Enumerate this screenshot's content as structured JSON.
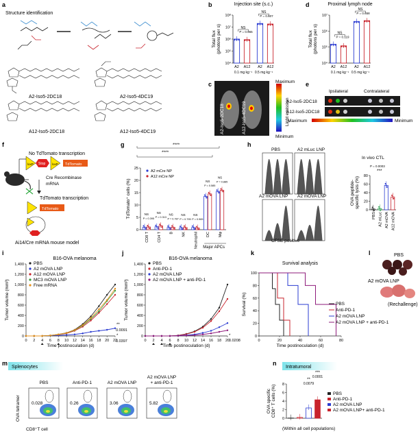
{
  "panels": {
    "a": {
      "letter": "a",
      "title": "Structure identification",
      "names": [
        "A2-Iso5-2DC18",
        "A2-Iso5-4DC19",
        "A12-Iso5-2DC18",
        "A12-Iso5-4DC19"
      ]
    },
    "b": {
      "letter": "b"
    },
    "c": {
      "letter": "c",
      "mice": [
        "A2-Iso5-2DC18",
        "A12-Iso5-4DC19"
      ],
      "max_label": "Maximum",
      "min_label": "Minimum",
      "axis_label": "Light emission"
    },
    "d": {
      "letter": "d"
    },
    "e": {
      "letter": "e",
      "col_labels": [
        "Ipsilateral",
        "Contralateral"
      ],
      "row_labels": [
        "A2-Iso5-2DC18",
        "A12-Iso5-2DC18"
      ],
      "scale_min": "Minimum",
      "scale_max": "Maximum"
    },
    "f": {
      "letter": "f",
      "text_top": "No TdTomato transcription",
      "loxp": "loxP",
      "stop": "Stop",
      "tdtomato": "TdTomato",
      "cre_label": "Cre Recombinase\nmRNA",
      "text_mid": "TdTomato transcription",
      "cre": "Cre",
      "caption": "Ai14/Cre mRNA mouse model"
    },
    "g": {
      "letter": "g",
      "stars": "****"
    },
    "h": {
      "letter": "h",
      "labels": [
        "PBS",
        "A2 mLuc LNP",
        "A2 mOVA LNP",
        "A2 mOVA LNP"
      ],
      "xaxis": "CFSE positive",
      "ctl_title": "In vivo CTL",
      "p": "P = 0.0003",
      "stars": "***",
      "ylabel": "OVA peptide-specific lysis (%)",
      "xcats": [
        "PBS",
        "A2 mLuc",
        "A2 mOVA",
        "A12 mOVA"
      ]
    },
    "i": {
      "letter": "i"
    },
    "j": {
      "letter": "j"
    },
    "k": {
      "letter": "k"
    },
    "l": {
      "letter": "l",
      "pbs": "PBS",
      "a2": "A2 mOVA LNP",
      "rechallenge": "(Rechallenge)"
    },
    "m": {
      "letter": "m",
      "banner": "Splenocytes",
      "titles": [
        "PBS",
        "Anti-PD-1",
        "A2 mOVA LNP",
        "A2 mOVA LNP\n+ anti-PD-1"
      ],
      "values": [
        "0.028",
        "0.26",
        "3.06",
        "5.82"
      ],
      "ylabel": "OVA tetramer",
      "xlabel": "CD8⁺T cell"
    },
    "n": {
      "letter": "n",
      "banner": "Intratumoral",
      "ylabel": "OVA specific CD8⁺ T cells (%)",
      "legend": [
        "PBS",
        "Anti-PD-1",
        "A2 mOVA LNP",
        "A2 mOVA LNP+ anti-PD-1"
      ],
      "annot": [
        "**",
        "0.0079",
        "***",
        "0.0001"
      ],
      "footer": "(Within all cell populations)"
    }
  },
  "chart_data": [
    {
      "id": "b",
      "type": "bar",
      "title": "Injection site (s.c.)",
      "ylabel": "Total flux (photons per s)",
      "yscale": "log",
      "ylim": [
        10000,
        100000000
      ],
      "yticks": [
        "10⁴",
        "10⁵",
        "10⁶",
        "10⁷",
        "10⁸"
      ],
      "categories": [
        "A2",
        "A12",
        "A2",
        "A12"
      ],
      "groups": [
        "0.1 mg kg⁻¹",
        "0.5 mg kg⁻¹"
      ],
      "values": [
        1000000,
        900000,
        20000000,
        18000000
      ],
      "colors": [
        "#2a3bd1",
        "#c8232c",
        "#2a3bd1",
        "#c8232c"
      ],
      "annotations": [
        {
          "text": "NS"
        },
        {
          "text": "P = 0.965"
        },
        {
          "text": "NS"
        },
        {
          "text": "P = 0.607"
        }
      ]
    },
    {
      "id": "d",
      "type": "bar",
      "title": "Proximal lymph node",
      "ylabel": "Total flux (photons per s)",
      "yscale": "log",
      "ylim": [
        10000,
        10000000
      ],
      "yticks": [
        "10⁴",
        "10⁵",
        "10⁶",
        "10⁷"
      ],
      "categories": [
        "A2",
        "A12",
        "A2",
        "A12"
      ],
      "groups": [
        "0.1 mg kg⁻¹",
        "0.5 mg kg⁻¹"
      ],
      "values": [
        150000,
        120000,
        4000000,
        4500000
      ],
      "colors": [
        "#2a3bd1",
        "#c8232c",
        "#2a3bd1",
        "#c8232c"
      ],
      "annotations": [
        {
          "text": "NS"
        },
        {
          "text": "P = 0.119"
        },
        {
          "text": "NS"
        },
        {
          "text": "P = 0.658"
        }
      ]
    },
    {
      "id": "g",
      "type": "bar",
      "ylabel": "TdTomato⁺ cells (%)",
      "ylim": [
        0,
        25
      ],
      "yticks": [
        "0",
        "5",
        "10",
        "15",
        "20",
        "25"
      ],
      "categories": [
        "CD8 T",
        "CD4 T",
        "B",
        "NK",
        "Neutrophil",
        "DC",
        "Mφ"
      ],
      "xgroup_label": "Major APCs",
      "series": [
        {
          "name": "A2 mCre NP",
          "values": [
            1.0,
            1.2,
            0.9,
            0.8,
            0.9,
            13.5,
            15.5
          ],
          "color": "#2a3bd1"
        },
        {
          "name": "A12 mCre NP",
          "values": [
            1.1,
            1.6,
            1.0,
            0.9,
            0.7,
            14.5,
            16.0
          ],
          "color": "#c8232c"
        }
      ],
      "annotations": [
        {
          "text": "NS"
        },
        {
          "text": "P = 0.395"
        },
        {
          "text": "NS"
        },
        {
          "text": "P = 0.313"
        },
        {
          "text": "NS"
        },
        {
          "text": "P = 0.787"
        },
        {
          "text": "NS"
        },
        {
          "text": "P = 0.795"
        },
        {
          "text": "NS"
        },
        {
          "text": "P = 0.965"
        },
        {
          "text": "NS"
        },
        {
          "text": "P = 0.585"
        },
        {
          "text": "NS"
        },
        {
          "text": "P = 0.885"
        }
      ]
    },
    {
      "id": "h",
      "type": "bar",
      "title": "In vivo CTL",
      "ylabel": "OVA peptide-specific lysis (%)",
      "ylim": [
        0,
        80
      ],
      "yticks": [
        "0",
        "20",
        "40",
        "60",
        "80"
      ],
      "categories": [
        "PBS",
        "A2 mLuc LNP",
        "A2 mOVA",
        "A12 mOVA"
      ],
      "values": [
        2,
        3,
        57,
        30
      ],
      "colors": [
        "#333333",
        "#31a354",
        "#2a3bd1",
        "#c8232c"
      ]
    },
    {
      "id": "i",
      "type": "line",
      "title": "B16-OVA melanoma",
      "xlabel": "Time postinoculation (d)",
      "ylabel": "Tumor volume (mm³)",
      "xlim": [
        0,
        22
      ],
      "ylim": [
        0,
        1400
      ],
      "xticks": [
        "0",
        "2",
        "4",
        "6",
        "8",
        "10",
        "12",
        "14",
        "16",
        "18",
        "20",
        "22"
      ],
      "yticks": [
        "0",
        "200",
        "400",
        "600",
        "800",
        "1,000",
        "1,200",
        "1,400"
      ],
      "x": [
        0,
        2,
        4,
        6,
        8,
        10,
        12,
        14,
        16,
        18,
        20,
        22
      ],
      "series": [
        {
          "name": "PBS",
          "color": "#222222",
          "values": [
            0,
            0,
            0,
            10,
            30,
            60,
            120,
            230,
            380,
            580,
            800,
            1000
          ]
        },
        {
          "name": "A2 mOVA LNP",
          "color": "#2a3bd1",
          "values": [
            0,
            0,
            0,
            5,
            10,
            20,
            30,
            50,
            80,
            100,
            120,
            150
          ]
        },
        {
          "name": "A12 mOVA LNP",
          "color": "#c8232c",
          "values": [
            0,
            0,
            0,
            8,
            25,
            50,
            100,
            180,
            300,
            450,
            620,
            800
          ]
        },
        {
          "name": "MC3 mOVA LNP",
          "color": "#3a9a3a",
          "values": [
            0,
            0,
            0,
            8,
            28,
            55,
            110,
            200,
            330,
            480,
            680,
            880
          ]
        },
        {
          "name": "Free mRNA",
          "color": "#e8901a",
          "values": [
            0,
            0,
            0,
            9,
            30,
            58,
            115,
            210,
            350,
            520,
            700,
            920
          ]
        }
      ],
      "annotations": [
        {
          "text": "**"
        },
        {
          "text": "0.0091"
        },
        {
          "text": "*"
        },
        {
          "text": "0.0397"
        }
      ]
    },
    {
      "id": "j",
      "type": "line",
      "title": "B16-OVA melanoma",
      "xlabel": "Time postinoculation (d)",
      "ylabel": "Tumor volume (mm³)",
      "xlim": [
        0,
        20
      ],
      "ylim": [
        0,
        1400
      ],
      "xticks": [
        "0",
        "2",
        "4",
        "6",
        "8",
        "10",
        "12",
        "14",
        "16",
        "18",
        "20"
      ],
      "yticks": [
        "0",
        "200",
        "400",
        "600",
        "800",
        "1,000",
        "1,200",
        "1,400"
      ],
      "x": [
        0,
        2,
        4,
        6,
        8,
        10,
        12,
        14,
        16,
        18,
        20
      ],
      "series": [
        {
          "name": "PBS",
          "color": "#222222",
          "values": [
            0,
            0,
            0,
            0,
            10,
            40,
            90,
            180,
            330,
            550,
            1000
          ]
        },
        {
          "name": "Anti-PD-1",
          "color": "#c8232c",
          "values": [
            0,
            0,
            0,
            0,
            10,
            35,
            80,
            160,
            290,
            480,
            720
          ]
        },
        {
          "name": "A2 mOVA LNP",
          "color": "#2a3bd1",
          "values": [
            0,
            0,
            0,
            0,
            5,
            15,
            30,
            60,
            100,
            170,
            250
          ]
        },
        {
          "name": "A2 mOVA LNP + anti-PD-1",
          "color": "#8e1a7a",
          "values": [
            0,
            0,
            0,
            0,
            3,
            8,
            15,
            30,
            50,
            80,
            110
          ]
        }
      ],
      "annotations": [
        {
          "text": "*"
        },
        {
          "text": "0.0208"
        }
      ]
    },
    {
      "id": "k",
      "type": "line",
      "title": "Survival analysis",
      "xlabel": "Time postinoculation (d)",
      "ylabel": "Survival (%)",
      "xlim": [
        0,
        80
      ],
      "ylim": [
        0,
        100
      ],
      "xticks": [
        "0",
        "20",
        "40",
        "60",
        "80"
      ],
      "yticks": [
        "0",
        "20",
        "40",
        "60",
        "80",
        "100"
      ],
      "series": [
        {
          "name": "PBS",
          "color": "#222222",
          "x": [
            0,
            13,
            13,
            16,
            16,
            20,
            20,
            24,
            24
          ],
          "values": [
            100,
            100,
            75,
            75,
            50,
            50,
            25,
            25,
            0
          ]
        },
        {
          "name": "Anti-PD-1",
          "color": "#c8232c",
          "x": [
            0,
            18,
            18,
            24,
            24,
            30,
            30
          ],
          "values": [
            100,
            100,
            60,
            60,
            25,
            25,
            0
          ]
        },
        {
          "name": "A2 mOVA LNP",
          "color": "#2a3bd1",
          "x": [
            0,
            28,
            28,
            38,
            38,
            48,
            48
          ],
          "values": [
            100,
            100,
            80,
            80,
            50,
            50,
            0
          ]
        },
        {
          "name": "A2 mOVA LNP + anti-PD-1",
          "color": "#8e1a7a",
          "x": [
            0,
            45,
            45,
            55,
            55,
            75,
            75
          ],
          "values": [
            100,
            100,
            80,
            80,
            50,
            50,
            0
          ]
        }
      ]
    },
    {
      "id": "n",
      "type": "bar",
      "ylabel": "OVA specific CD8⁺ T cells (%)",
      "ylim": [
        0,
        8
      ],
      "yticks": [
        "0",
        "2",
        "4",
        "6",
        "8"
      ],
      "categories": [
        "PBS",
        "Anti-PD-1",
        "A2 mOVA LNP",
        "A2 mOVA LNP+ anti-PD-1"
      ],
      "values": [
        0.05,
        0.2,
        2.4,
        4.3
      ],
      "colors": [
        "#222222",
        "#c8232c",
        "#2a3bd1",
        "#c8232c"
      ]
    }
  ]
}
